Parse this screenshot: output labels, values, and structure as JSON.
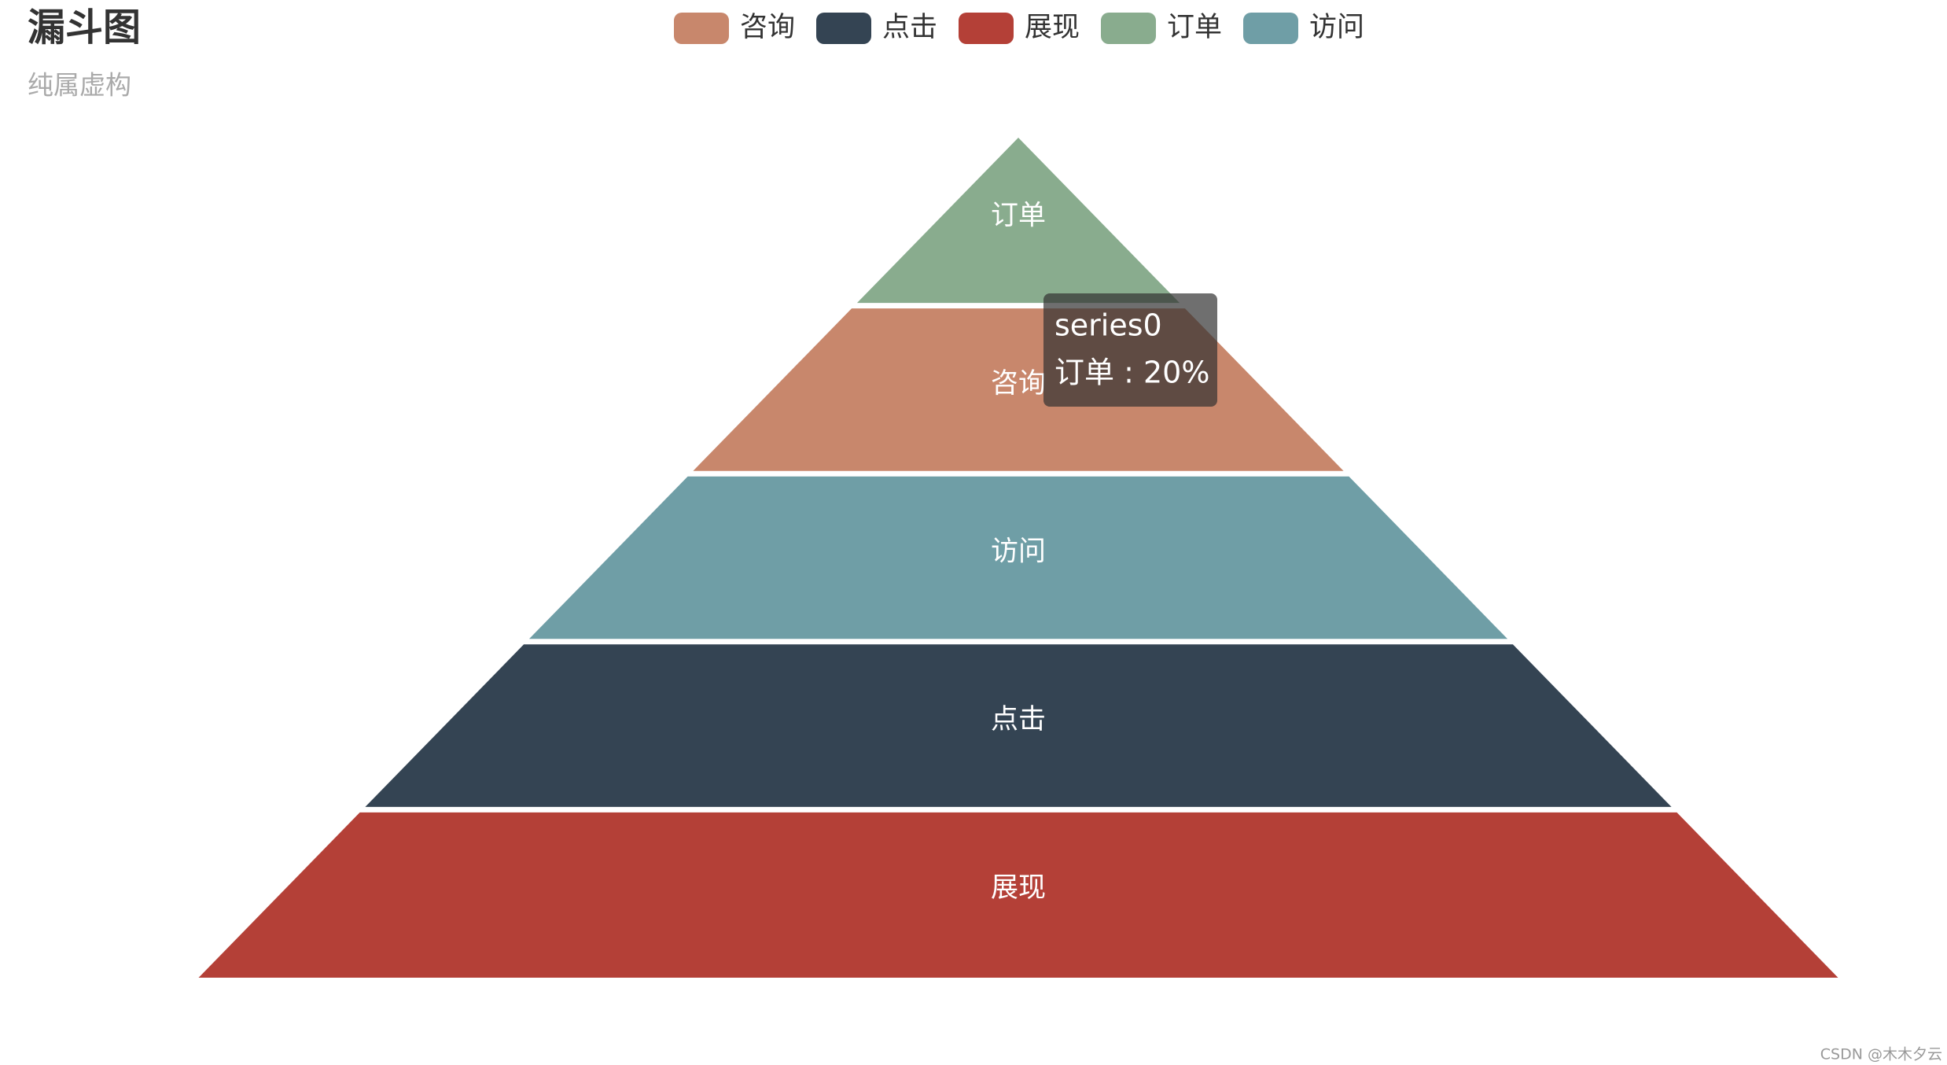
{
  "chart_data": {
    "type": "funnel",
    "title": "漏斗图",
    "subtitle": "纯属虚构",
    "categories": [
      "咨询",
      "点击",
      "展现",
      "订单",
      "访问"
    ],
    "values": [
      40,
      80,
      100,
      20,
      60
    ],
    "colors": [
      "#c8876c",
      "#344453",
      "#b44037",
      "#89ac8e",
      "#6f9ea6"
    ],
    "tooltip": {
      "title": "series0",
      "text": "订单 : 20%"
    },
    "watermark": "CSDN @木木夕云"
  }
}
